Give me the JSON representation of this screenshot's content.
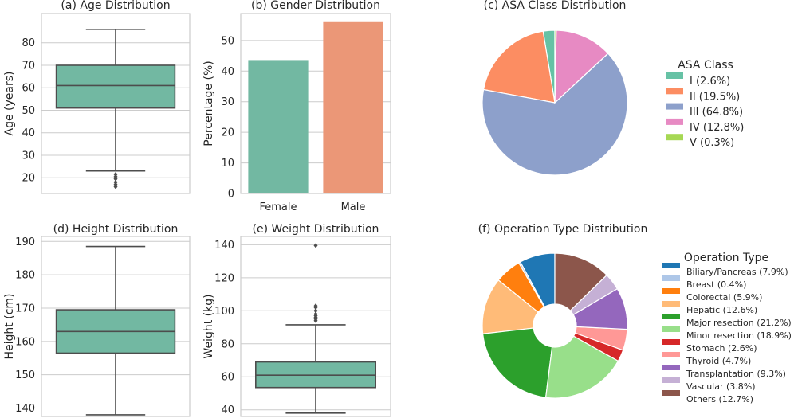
{
  "chart_data": [
    {
      "id": "age",
      "type": "box",
      "title": "(a) Age Distribution",
      "xlabel": "",
      "ylabel": "Age (years)",
      "ylim": [
        13,
        93
      ],
      "yticks": [
        20,
        30,
        40,
        50,
        60,
        70,
        80
      ],
      "box": {
        "min": 23,
        "q1": 51,
        "median": 61,
        "q3": 70,
        "max": 86,
        "outliers": [
          21.5,
          20.5,
          19.5,
          18,
          17,
          16
        ]
      },
      "color": "#72b8a2"
    },
    {
      "id": "gender",
      "type": "bar",
      "title": "(b) Gender Distribution",
      "xlabel": "",
      "ylabel": "Percentage (%)",
      "ylim": [
        0,
        58.8
      ],
      "yticks": [
        0,
        10,
        20,
        30,
        40,
        50
      ],
      "categories": [
        "Female",
        "Male"
      ],
      "values": [
        43.6,
        56.0
      ],
      "colors": [
        "#72b8a2",
        "#eb9777"
      ]
    },
    {
      "id": "asa",
      "type": "pie",
      "title": "(c) ASA Class Distribution",
      "legend_title": "ASA Class",
      "legend_position": "right",
      "labels": [
        "I (2.6%)",
        "II (19.5%)",
        "III (64.8%)",
        "IV (12.8%)",
        "V (0.3%)"
      ],
      "values": [
        2.6,
        19.5,
        64.8,
        12.8,
        0.3
      ],
      "colors": [
        "#66c2a5",
        "#fc8d62",
        "#8da0cb",
        "#e78ac3",
        "#a6d854"
      ]
    },
    {
      "id": "height",
      "type": "box",
      "title": "(d) Height Distribution",
      "xlabel": "",
      "ylabel": "Height (cm)",
      "ylim": [
        137.5,
        191.5
      ],
      "yticks": [
        140,
        150,
        160,
        170,
        180,
        190
      ],
      "box": {
        "min": 138,
        "q1": 156.5,
        "median": 163,
        "q3": 169.5,
        "max": 188.5,
        "outliers": []
      },
      "color": "#72b8a2"
    },
    {
      "id": "weight",
      "type": "box",
      "title": "(e) Weight Distribution",
      "xlabel": "",
      "ylabel": "Weight (kg)",
      "ylim": [
        36,
        145
      ],
      "yticks": [
        40,
        60,
        80,
        100,
        120,
        140
      ],
      "box": {
        "min": 38,
        "q1": 53.5,
        "median": 61,
        "q3": 69,
        "max": 91.5,
        "outliers": [
          94,
          95,
          96,
          97,
          98,
          100,
          102,
          103,
          139.5
        ]
      },
      "color": "#72b8a2"
    },
    {
      "id": "optype",
      "type": "donut",
      "title": "(f) Operation Type Distribution",
      "legend_title": "Operation Type",
      "legend_position": "right",
      "labels": [
        "Biliary/Pancreas (7.9%)",
        "Breast (0.4%)",
        "Colorectal (5.9%)",
        "Hepatic (12.6%)",
        "Major resection (21.2%)",
        "Minor resection (18.9%)",
        "Stomach (2.6%)",
        "Thyroid (4.7%)",
        "Transplantation (9.3%)",
        "Vascular (3.8%)",
        "Others (12.7%)"
      ],
      "values": [
        7.9,
        0.4,
        5.9,
        12.6,
        21.2,
        18.9,
        2.6,
        4.7,
        9.3,
        3.8,
        12.7
      ],
      "colors": [
        "#1f77b4",
        "#aec7e8",
        "#ff7f0e",
        "#ffbb78",
        "#2ca02c",
        "#98df8a",
        "#d62728",
        "#ff9896",
        "#9467bd",
        "#c5b0d5",
        "#8c564b"
      ]
    }
  ]
}
